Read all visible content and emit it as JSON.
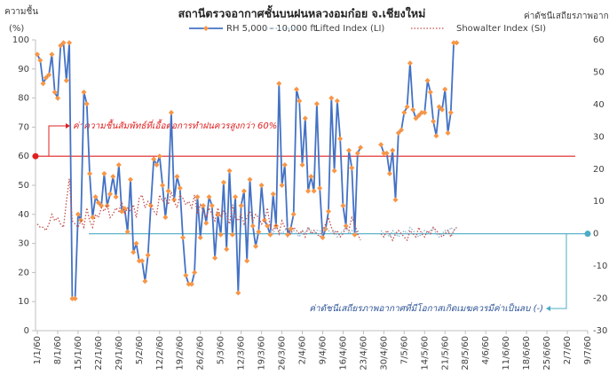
{
  "chart_data": {
    "type": "line",
    "title": "สถานีตรวจอากาศชั้นบนฝนหลวงอมก๋อย จ.เชียงใหม่",
    "y_label": [
      "ความชื้น",
      "(%)"
    ],
    "y2_label": "ค่าดัชนีเสถียรภาพอากาศ",
    "x": [
      "1/1/60",
      "2/1/60",
      "3/1/60",
      "4/1/60",
      "5/1/60",
      "6/1/60",
      "7/1/60",
      "8/1/60",
      "9/1/60",
      "10/1/60",
      "11/1/60",
      "12/1/60",
      "13/1/60",
      "14/1/60",
      "15/1/60",
      "16/1/60",
      "17/1/60",
      "18/1/60",
      "19/1/60",
      "20/1/60",
      "21/1/60",
      "22/1/60",
      "23/1/60",
      "24/1/60",
      "25/1/60",
      "26/1/60",
      "27/1/60",
      "28/1/60",
      "29/1/60",
      "30/1/60",
      "31/1/60",
      "1/2/60",
      "2/2/60",
      "3/2/60",
      "4/2/60",
      "5/2/60",
      "6/2/60",
      "7/2/60",
      "8/2/60",
      "9/2/60",
      "10/2/60",
      "11/2/60",
      "12/2/60",
      "13/2/60",
      "14/2/60",
      "15/2/60",
      "16/2/60",
      "17/2/60",
      "18/2/60",
      "19/2/60",
      "20/2/60",
      "21/2/60",
      "22/2/60",
      "23/2/60",
      "24/2/60",
      "25/2/60",
      "26/2/60",
      "27/2/60",
      "28/2/60",
      "1/3/60",
      "2/3/60",
      "3/3/60",
      "4/3/60",
      "5/3/60",
      "6/3/60",
      "7/3/60",
      "8/3/60",
      "9/3/60",
      "10/3/60",
      "11/3/60",
      "12/3/60",
      "13/3/60",
      "14/3/60",
      "15/3/60",
      "16/3/60",
      "17/3/60",
      "18/3/60",
      "19/3/60",
      "20/3/60",
      "21/3/60",
      "22/3/60",
      "23/3/60",
      "24/3/60",
      "25/3/60",
      "26/3/60",
      "27/3/60",
      "28/3/60",
      "29/3/60",
      "30/3/60",
      "31/3/60",
      "1/4/60",
      "2/4/60",
      "3/4/60",
      "4/4/60",
      "5/4/60",
      "6/4/60",
      "7/4/60",
      "8/4/60",
      "9/4/60",
      "10/4/60",
      "11/4/60",
      "12/4/60",
      "13/4/60",
      "14/4/60",
      "15/4/60",
      "16/4/60",
      "17/4/60",
      "18/4/60",
      "19/4/60",
      "20/4/60",
      "21/4/60",
      "22/4/60",
      "23/4/60",
      "24/4/60",
      "25/4/60",
      "26/4/60",
      "27/4/60",
      "28/4/60",
      "29/4/60",
      "30/4/60",
      "1/5/60",
      "2/5/60",
      "3/5/60",
      "4/5/60",
      "5/5/60",
      "6/5/60",
      "7/5/60",
      "8/5/60",
      "9/5/60",
      "10/5/60",
      "11/5/60",
      "12/5/60",
      "13/5/60",
      "14/5/60",
      "15/5/60",
      "16/5/60",
      "17/5/60",
      "18/5/60",
      "19/5/60",
      "20/5/60",
      "21/5/60",
      "22/5/60",
      "23/5/60",
      "24/5/60",
      "25/5/60"
    ],
    "xlim": [
      "1/1/60",
      "9/7/60"
    ],
    "xticks": [
      "1/1/60",
      "8/1/60",
      "15/1/60",
      "22/1/60",
      "29/1/60",
      "5/2/60",
      "12/2/60",
      "19/2/60",
      "26/2/60",
      "5/3/60",
      "12/3/60",
      "19/3/60",
      "26/3/60",
      "2/4/60",
      "9/4/60",
      "16/4/60",
      "23/4/60",
      "30/4/60",
      "7/5/60",
      "14/5/60",
      "21/5/60",
      "28/5/60",
      "4/6/60",
      "11/6/60",
      "18/6/60",
      "25/6/60",
      "2/7/60",
      "9/7/60"
    ],
    "ylim": [
      0,
      100
    ],
    "yticks": [
      0,
      10,
      20,
      30,
      40,
      50,
      60,
      70,
      80,
      90,
      100
    ],
    "y2lim": [
      -30,
      60
    ],
    "y2ticks": [
      -30,
      -20,
      -10,
      0,
      10,
      20,
      30,
      40,
      50,
      60
    ],
    "series": [
      {
        "name": "RH 5,000 - 10,000 ft.",
        "color": "#4472c4",
        "marker_color": "#f79646",
        "style": "solid",
        "values": [
          95,
          93,
          85,
          87,
          88,
          95,
          82,
          80,
          98,
          99,
          86,
          99,
          11,
          11,
          40,
          38,
          82,
          78,
          54,
          39,
          46,
          44,
          43,
          54,
          43,
          47,
          53,
          46,
          57,
          41,
          42,
          34,
          52,
          27,
          30,
          24,
          24,
          17,
          26,
          43,
          59,
          57,
          60,
          50,
          39,
          48,
          75,
          45,
          53,
          49,
          32,
          19,
          16,
          16,
          20,
          46,
          32,
          43,
          37,
          46,
          43,
          25,
          40,
          33,
          51,
          28,
          55,
          33,
          46,
          13,
          43,
          48,
          24,
          52,
          36,
          29,
          34,
          50,
          38,
          36,
          33,
          47,
          36,
          85,
          50,
          57,
          33,
          35,
          40,
          83,
          79,
          57,
          73,
          48,
          53,
          48,
          78,
          49,
          32,
          35,
          41,
          80,
          55,
          79,
          66,
          43,
          36,
          62,
          56,
          33,
          61,
          63,
          null,
          null,
          null,
          null,
          null,
          null,
          64,
          61,
          61,
          54,
          62,
          45,
          68,
          69,
          75,
          77,
          92,
          76,
          73,
          74,
          75,
          75,
          86,
          82,
          72,
          67,
          77,
          76,
          83,
          68,
          75,
          99,
          99
        ]
      },
      {
        "name": "Lifted Index (LI)",
        "color": "#8fb4cf",
        "style": "dotted",
        "axis": "y2",
        "values": [
          null,
          null,
          null,
          null,
          null,
          null,
          null,
          null,
          null,
          null,
          null,
          null,
          null,
          null,
          null,
          null,
          null,
          null,
          null,
          null,
          null,
          null,
          null,
          null,
          null,
          null,
          null,
          null,
          null,
          null,
          null,
          null,
          null,
          null,
          null,
          null,
          null,
          null,
          null,
          null,
          null,
          null,
          null,
          null,
          null,
          null,
          null,
          null,
          null,
          null,
          null,
          null,
          null,
          null,
          null,
          null,
          null,
          null,
          null,
          null,
          null,
          null,
          null,
          null,
          null,
          null,
          null,
          null,
          null,
          null,
          null,
          null,
          null,
          null,
          null,
          null,
          null,
          null,
          null,
          null,
          1,
          0,
          2,
          1,
          0,
          1,
          2,
          0,
          1,
          0,
          -1,
          1,
          0,
          2,
          1,
          0,
          1,
          1,
          0,
          2,
          1,
          0,
          1,
          -1,
          0,
          1,
          2,
          0,
          1,
          0,
          1,
          0,
          null,
          null,
          null,
          null,
          null,
          null,
          1,
          0,
          0,
          -1,
          1,
          0,
          -1,
          0,
          1,
          0,
          2,
          1,
          0,
          -1,
          0,
          1,
          0,
          1,
          2,
          0,
          -1,
          0,
          1,
          0,
          2,
          1,
          2
        ]
      },
      {
        "name": "Showalter Index (SI)",
        "color": "#c0504d",
        "style": "dotted",
        "axis": "y2",
        "values": [
          3,
          2,
          2,
          1,
          3,
          6,
          4,
          5,
          3,
          2,
          10,
          17,
          4,
          3,
          2,
          4,
          2,
          8,
          4,
          2,
          6,
          5,
          8,
          7,
          9,
          5,
          6,
          8,
          7,
          10,
          6,
          8,
          7,
          9,
          5,
          11,
          12,
          8,
          10,
          9,
          7,
          6,
          12,
          10,
          11,
          9,
          13,
          10,
          8,
          12,
          11,
          9,
          10,
          8,
          12,
          6,
          9,
          7,
          5,
          8,
          6,
          4,
          8,
          5,
          7,
          6,
          3,
          9,
          5,
          4,
          6,
          3,
          5,
          7,
          4,
          6,
          5,
          3,
          4,
          8,
          2,
          1,
          3,
          0,
          4,
          2,
          1,
          0,
          2,
          1,
          0,
          1,
          -1,
          2,
          0,
          1,
          0,
          -1,
          1,
          3,
          5,
          2,
          0,
          1,
          -1,
          0,
          2,
          1,
          5,
          3,
          0,
          -2,
          null,
          null,
          null,
          null,
          null,
          null,
          0,
          -1,
          1,
          0,
          -2,
          0,
          1,
          0,
          -1,
          -2,
          1,
          0,
          -1,
          2,
          0,
          -1,
          1,
          0,
          2,
          1,
          0,
          -1,
          0,
          1,
          -1,
          1,
          2
        ]
      }
    ],
    "reference_lines": [
      {
        "value": 60,
        "axis": "y",
        "color": "#e02020",
        "label": "ค่าความชื้นสัมพัทธ์ที่เอื้อต่อการทำฝนควรสูงกว่า 60%"
      },
      {
        "value": 0,
        "axis": "y2",
        "color": "#4bacc6",
        "label": "ค่าดัชนีเสถียรภาพอากาศที่มีโอกาสเกิดเมฆควรมีค่าเป็นลบ (-)"
      }
    ],
    "grid": false
  }
}
